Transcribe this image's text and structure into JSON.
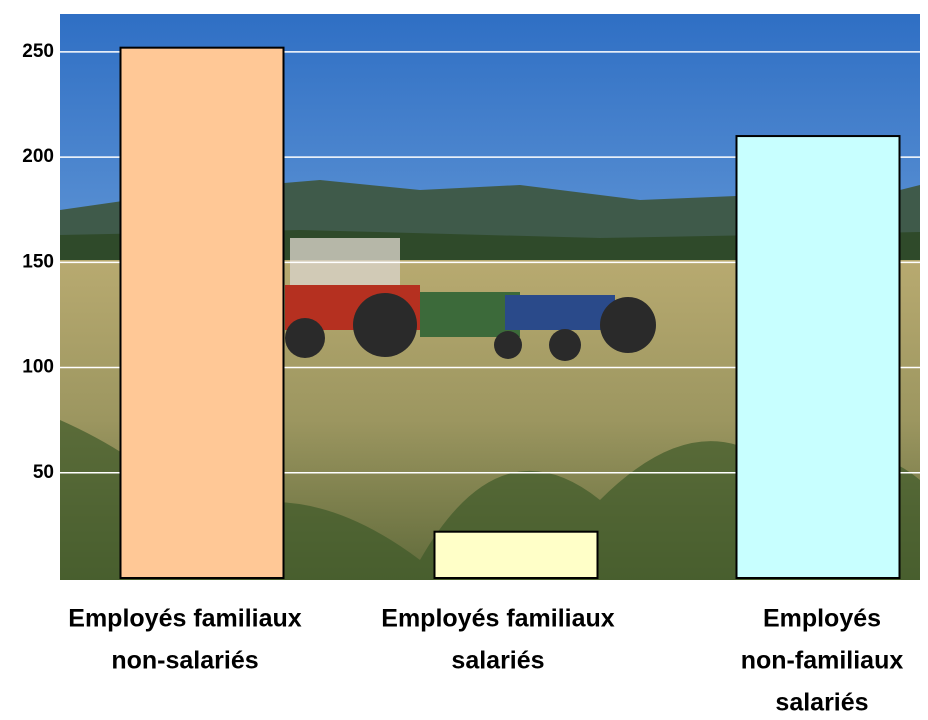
{
  "chart_data": {
    "type": "bar",
    "categories": [
      [
        "Employés familiaux",
        "non-salariés"
      ],
      [
        "Employés familiaux",
        "salariés"
      ],
      [
        "Employés",
        "non-familiaux",
        "salariés"
      ]
    ],
    "values": [
      252,
      22,
      210
    ],
    "colors": [
      "#ffc896",
      "#ffffc8",
      "#c8ffff"
    ],
    "ylim": [
      0,
      268
    ],
    "yticks": [
      50,
      100,
      150,
      200,
      250
    ],
    "grid": true
  }
}
